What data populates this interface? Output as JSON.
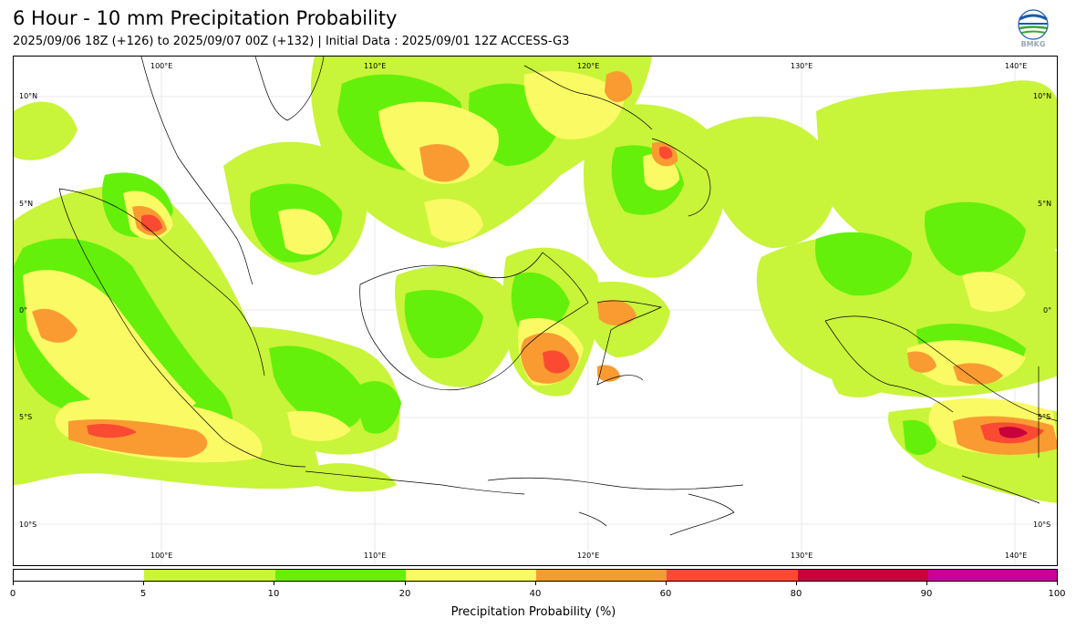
{
  "header": {
    "title": "6 Hour - 10 mm Precipitation Probability",
    "subtitle": "2025/09/06 18Z (+126) to 2025/09/07 00Z (+132) | Initial Data : 2025/09/01 12Z ACCESS-G3",
    "logo_text": "BMKG"
  },
  "map": {
    "lon_labels": [
      "100°E",
      "110°E",
      "120°E",
      "130°E",
      "140°E"
    ],
    "lat_labels": [
      "10°N",
      "5°N",
      "0°",
      "5°S",
      "10°S"
    ]
  },
  "legend": {
    "label": "Precipitation Probability (%)",
    "ticks": [
      "0",
      "5",
      "10",
      "20",
      "40",
      "60",
      "80",
      "90",
      "100"
    ],
    "colors": [
      "#ffffff",
      "#c8f43a",
      "#64f00a",
      "#fafa64",
      "#fa9b32",
      "#fa4b32",
      "#c8003c",
      "#c8009b"
    ]
  },
  "colors": {
    "lime": "#c8f43a",
    "green": "#64f00a",
    "yellow": "#fafa64",
    "orange": "#fa9b32",
    "red": "#fa4b32",
    "crimson": "#c8003c",
    "magenta": "#c8009b"
  }
}
